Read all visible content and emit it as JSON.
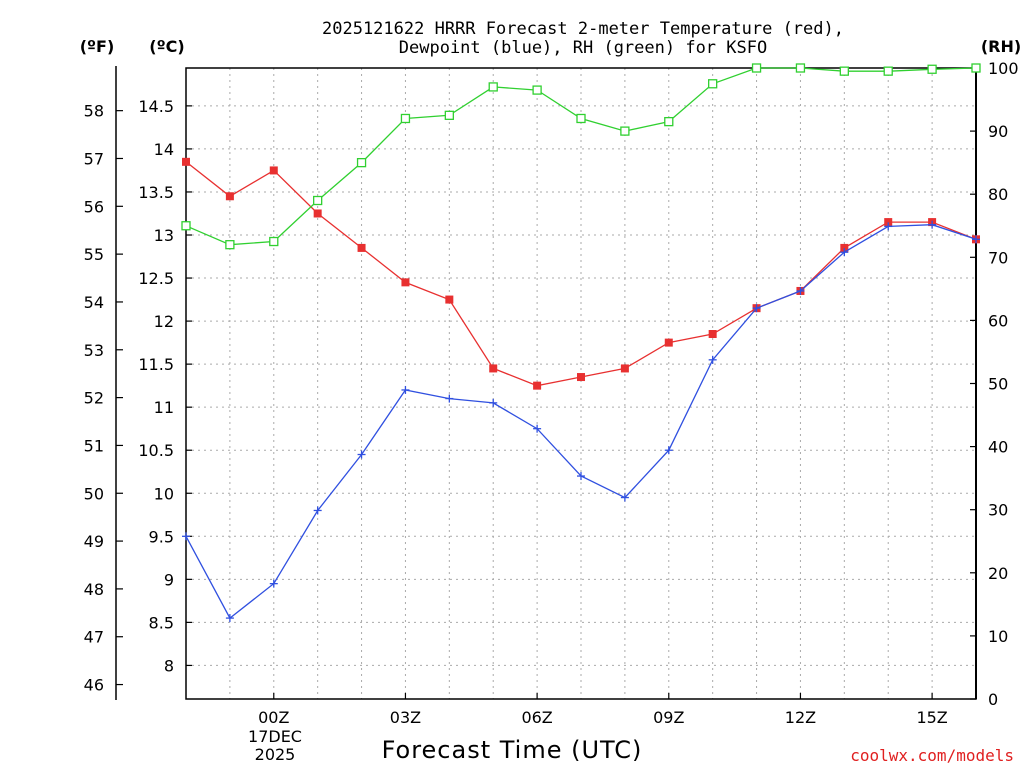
{
  "chart_data": {
    "type": "line",
    "title_line1": "2025121622 HRRR Forecast 2-meter Temperature (red),",
    "title_line2": "Dewpoint (blue), RH (green) for KSFO",
    "unit_f": "(ºF)",
    "unit_c": "(ºC)",
    "unit_rh": "(RH)",
    "xlabel": "Forecast Time (UTC)",
    "credit": "coolwx.com/models",
    "x": [
      -2,
      -1,
      0,
      1,
      2,
      3,
      4,
      5,
      6,
      7,
      8,
      9,
      10,
      11,
      12,
      13,
      14,
      15,
      16
    ],
    "x_ticks": [
      {
        "x": 0,
        "label": "00Z"
      },
      {
        "x": 3,
        "label": "03Z"
      },
      {
        "x": 6,
        "label": "06Z"
      },
      {
        "x": 9,
        "label": "09Z"
      },
      {
        "x": 12,
        "label": "12Z"
      },
      {
        "x": 15,
        "label": "15Z"
      }
    ],
    "date_line1": "17DEC",
    "date_line2": "2025",
    "xlim": [
      -2,
      16
    ],
    "ylim_c": [
      7.61,
      14.94
    ],
    "ylim_rh": [
      0,
      100
    ],
    "yticks_c": [
      8,
      8.5,
      9,
      9.5,
      10,
      10.5,
      11,
      11.5,
      12,
      12.5,
      13,
      13.5,
      14,
      14.5
    ],
    "yticks_f": [
      46,
      47,
      48,
      49,
      50,
      51,
      52,
      53,
      54,
      55,
      56,
      57,
      58
    ],
    "yticks_rh": [
      0,
      10,
      20,
      30,
      40,
      50,
      60,
      70,
      80,
      90,
      100
    ],
    "series": [
      {
        "name": "Temperature",
        "axis": "celsius",
        "color": "#e83030",
        "marker": "filled-square",
        "values": [
          13.85,
          13.45,
          13.75,
          13.25,
          12.85,
          12.45,
          12.25,
          11.45,
          11.25,
          11.35,
          11.45,
          11.75,
          11.85,
          12.15,
          12.35,
          12.85,
          13.15,
          13.15,
          12.95
        ]
      },
      {
        "name": "Dewpoint",
        "axis": "celsius",
        "color": "#3050e0",
        "marker": "plus",
        "values": [
          9.5,
          8.55,
          8.95,
          9.8,
          10.45,
          11.2,
          11.1,
          11.05,
          10.75,
          10.2,
          9.95,
          10.5,
          11.55,
          12.15,
          12.35,
          12.8,
          13.1,
          13.12,
          12.95
        ]
      },
      {
        "name": "RH",
        "axis": "rh",
        "color": "#30d030",
        "marker": "open-square",
        "values": [
          75,
          72,
          72.5,
          79,
          85,
          92,
          92.5,
          97,
          96.5,
          92,
          90,
          91.5,
          97.5,
          100,
          100,
          99.5,
          99.5,
          99.8,
          100
        ]
      }
    ]
  }
}
